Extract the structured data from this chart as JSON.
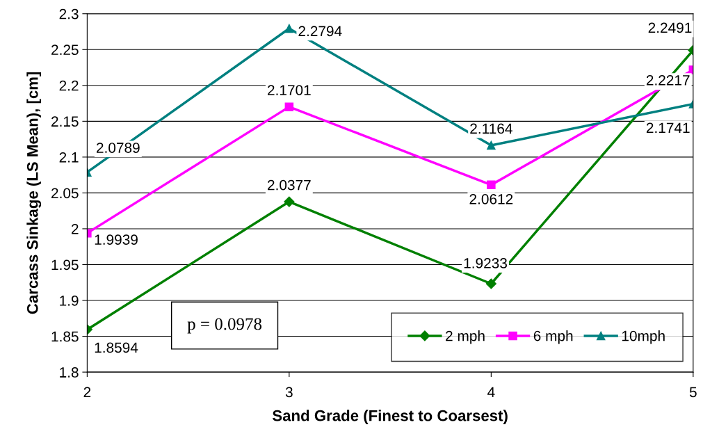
{
  "chart_data": {
    "type": "line",
    "xlabel": "Sand Grade (Finest to Coarsest)",
    "ylabel": "Carcass Sinkage (LS Mean), [cm]",
    "x": [
      2,
      3,
      4,
      5
    ],
    "xlim": [
      2,
      5
    ],
    "xticks": [
      2,
      3,
      4,
      5
    ],
    "ylim": [
      1.8,
      2.3
    ],
    "yticks": [
      {
        "value": 1.8,
        "label": "1.8"
      },
      {
        "value": 1.85,
        "label": "1.85"
      },
      {
        "value": 1.9,
        "label": "1.9"
      },
      {
        "value": 1.95,
        "label": "1.95"
      },
      {
        "value": 2.0,
        "label": "2"
      },
      {
        "value": 2.05,
        "label": "2.05"
      },
      {
        "value": 2.1,
        "label": "2.1"
      },
      {
        "value": 2.15,
        "label": "2.15"
      },
      {
        "value": 2.2,
        "label": "2.2"
      },
      {
        "value": 2.25,
        "label": "2.25"
      },
      {
        "value": 2.3,
        "label": "2.3"
      }
    ],
    "grid": "y",
    "legend": "bottom right",
    "data_labels": true,
    "series": [
      {
        "name": "2 mph",
        "color": "#008000",
        "marker": "diamond",
        "values": [
          1.8594,
          2.0377,
          1.9233,
          2.2491
        ]
      },
      {
        "name": "6 mph",
        "color": "#ff00ff",
        "marker": "square",
        "values": [
          1.9939,
          2.1701,
          2.0612,
          2.2217
        ]
      },
      {
        "name": "10mph",
        "color": "#008080",
        "marker": "triangle",
        "values": [
          2.0789,
          2.2794,
          2.1164,
          2.1741
        ]
      }
    ],
    "annotations": [
      "p = 0.0978"
    ]
  }
}
